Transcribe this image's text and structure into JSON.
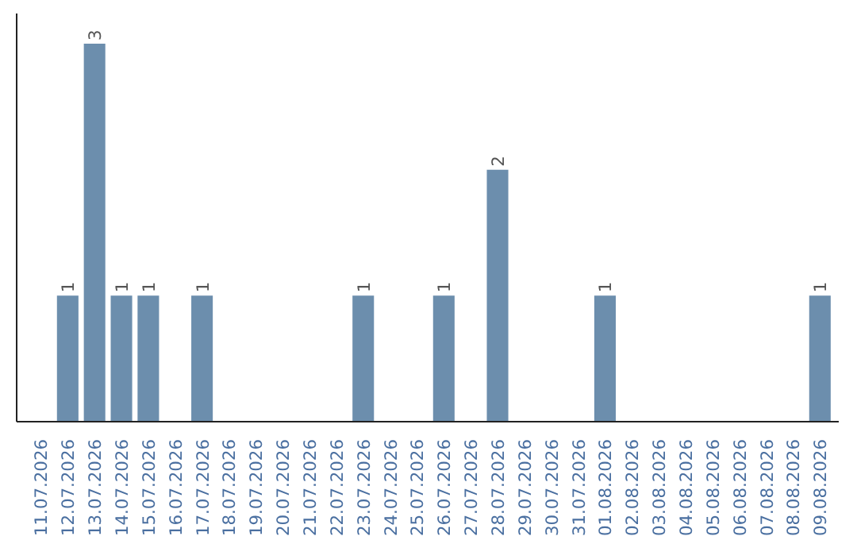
{
  "chart_data": {
    "type": "bar",
    "categories": [
      "11.07.2026",
      "12.07.2026",
      "13.07.2026",
      "14.07.2026",
      "15.07.2026",
      "16.07.2026",
      "17.07.2026",
      "18.07.2026",
      "19.07.2026",
      "20.07.2026",
      "21.07.2026",
      "22.07.2026",
      "23.07.2026",
      "24.07.2026",
      "25.07.2026",
      "26.07.2026",
      "27.07.2026",
      "28.07.2026",
      "29.07.2026",
      "30.07.2026",
      "31.07.2026",
      "01.08.2026",
      "02.08.2026",
      "03.08.2026",
      "04.08.2026",
      "05.08.2026",
      "06.08.2026",
      "07.08.2026",
      "08.08.2026",
      "09.08.2026"
    ],
    "values": [
      0,
      1,
      3,
      1,
      1,
      0,
      1,
      0,
      0,
      0,
      0,
      0,
      1,
      0,
      0,
      1,
      0,
      2,
      0,
      0,
      0,
      1,
      0,
      0,
      0,
      0,
      0,
      0,
      0,
      1
    ],
    "value_labels": [
      null,
      "1",
      "3",
      "1",
      "1",
      null,
      "1",
      null,
      null,
      null,
      null,
      null,
      "1",
      null,
      null,
      "1",
      null,
      "2",
      null,
      null,
      null,
      "1",
      null,
      null,
      null,
      null,
      null,
      null,
      null,
      "1"
    ],
    "color": "#6c8ead",
    "grid": false
  }
}
